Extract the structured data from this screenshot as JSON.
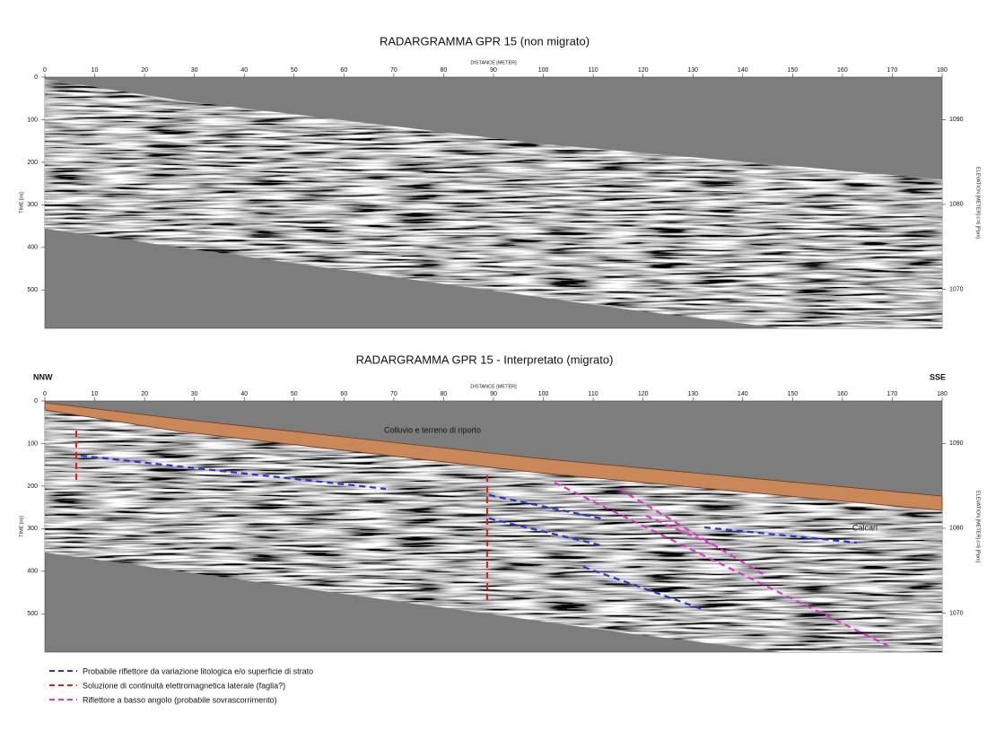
{
  "panels": [
    {
      "title": "RADARGRAMMA GPR 15 (non migrato)",
      "x_axis_label": "DISTANCE [METER]",
      "y_axis_label": "TIME [ns]",
      "y2_axis_label": "ELEVATION [METER] ε=6 [Ppm]",
      "xlim": [
        0,
        180
      ],
      "xticks": [
        0,
        10,
        20,
        30,
        40,
        50,
        60,
        70,
        80,
        90,
        100,
        110,
        120,
        130,
        140,
        150,
        160,
        170,
        180
      ],
      "ylim": [
        0,
        590
      ],
      "yticks": [
        0,
        100,
        200,
        300,
        400,
        500
      ],
      "y2lim": [
        1095,
        1065.4
      ],
      "y2ticks": [
        1090,
        1080,
        1070
      ]
    },
    {
      "title": "RADARGRAMMA GPR 15 - Interpretato (migrato)",
      "x_axis_label": "DISTANCE [METER]",
      "y_axis_label": "TIME [ns]",
      "y2_axis_label": "ELEVATION [METER] ε=6 [Ppm]",
      "left_direction": "NNW",
      "right_direction": "SSE",
      "xlim": [
        0,
        180
      ],
      "xticks": [
        0,
        10,
        20,
        30,
        40,
        50,
        60,
        70,
        80,
        90,
        100,
        110,
        120,
        130,
        140,
        150,
        160,
        170,
        180
      ],
      "ylim": [
        0,
        590
      ],
      "yticks": [
        0,
        100,
        200,
        300,
        400,
        500
      ],
      "y2lim": [
        1095,
        1065.4
      ],
      "y2ticks": [
        1090,
        1080,
        1070
      ],
      "annotations": [
        "Colluvio e terreno di riporto",
        "Calcari"
      ]
    }
  ],
  "legend": [
    "Probabile riflettore da variazione litologica e/o superficie di strato",
    "Soluzione di continuità elettromagnetica laterale (faglia?)",
    "Riflettore a basso angolo (probabile sovrascorrimento)"
  ]
}
